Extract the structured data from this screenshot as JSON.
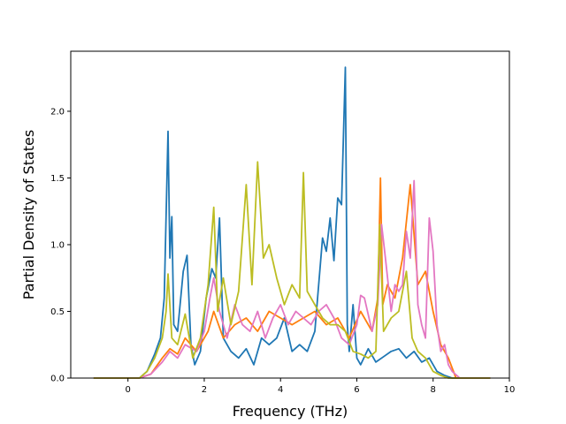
{
  "chart_data": {
    "type": "line",
    "title": "",
    "xlabel": "Frequency (THz)",
    "ylabel": "Partial Density of States",
    "xlim": [
      -1.5,
      10.0
    ],
    "ylim": [
      0.0,
      2.45
    ],
    "xticks": [
      "0",
      "2",
      "4",
      "6",
      "8",
      "10"
    ],
    "yticks": [
      "0.0",
      "0.5",
      "1.0",
      "1.5",
      "2.0"
    ],
    "grid": false,
    "legend": "none",
    "series": [
      {
        "color": "#1f77b4",
        "x": [
          -0.9,
          0.3,
          0.5,
          0.7,
          0.85,
          0.95,
          1.05,
          1.1,
          1.15,
          1.2,
          1.3,
          1.45,
          1.55,
          1.65,
          1.75,
          1.9,
          2.05,
          2.2,
          2.3,
          2.4,
          2.5,
          2.7,
          2.9,
          3.1,
          3.3,
          3.5,
          3.7,
          3.9,
          4.1,
          4.3,
          4.5,
          4.7,
          4.9,
          5.1,
          5.2,
          5.3,
          5.4,
          5.5,
          5.6,
          5.7,
          5.75,
          5.8,
          5.9,
          6.0,
          6.1,
          6.3,
          6.5,
          6.7,
          6.9,
          7.1,
          7.3,
          7.5,
          7.7,
          7.9,
          8.1,
          8.3,
          8.5,
          9.5
        ],
        "y": [
          0.0,
          0.0,
          0.05,
          0.18,
          0.3,
          0.6,
          1.85,
          0.9,
          1.21,
          0.4,
          0.35,
          0.8,
          0.92,
          0.25,
          0.1,
          0.2,
          0.6,
          0.82,
          0.75,
          1.2,
          0.3,
          0.2,
          0.15,
          0.22,
          0.1,
          0.3,
          0.25,
          0.3,
          0.45,
          0.2,
          0.25,
          0.2,
          0.35,
          1.05,
          0.95,
          1.2,
          0.88,
          1.35,
          1.3,
          2.33,
          0.4,
          0.2,
          0.55,
          0.15,
          0.1,
          0.22,
          0.12,
          0.16,
          0.2,
          0.22,
          0.15,
          0.2,
          0.12,
          0.15,
          0.05,
          0.02,
          0.0,
          0.0
        ]
      },
      {
        "color": "#ff7f0e",
        "x": [
          -0.9,
          0.3,
          0.6,
          0.9,
          1.1,
          1.3,
          1.5,
          1.8,
          2.1,
          2.25,
          2.5,
          2.8,
          3.1,
          3.4,
          3.7,
          4.0,
          4.3,
          4.6,
          4.9,
          5.2,
          5.5,
          5.8,
          6.1,
          6.4,
          6.55,
          6.62,
          6.68,
          6.8,
          7.0,
          7.2,
          7.4,
          7.6,
          7.8,
          8.0,
          8.2,
          8.4,
          8.6,
          9.5
        ],
        "y": [
          0.0,
          0.0,
          0.03,
          0.15,
          0.22,
          0.18,
          0.3,
          0.2,
          0.35,
          0.5,
          0.3,
          0.4,
          0.45,
          0.35,
          0.5,
          0.45,
          0.4,
          0.45,
          0.5,
          0.4,
          0.45,
          0.3,
          0.5,
          0.35,
          0.6,
          1.5,
          0.55,
          0.7,
          0.6,
          0.9,
          1.45,
          0.7,
          0.8,
          0.5,
          0.25,
          0.15,
          0.0,
          0.0
        ]
      },
      {
        "color": "#e377c2",
        "x": [
          -0.9,
          0.3,
          0.6,
          0.9,
          1.1,
          1.3,
          1.5,
          1.8,
          2.0,
          2.15,
          2.25,
          2.4,
          2.6,
          2.8,
          3.0,
          3.2,
          3.4,
          3.6,
          3.8,
          4.0,
          4.2,
          4.4,
          4.6,
          4.8,
          5.0,
          5.2,
          5.4,
          5.6,
          5.8,
          6.0,
          6.1,
          6.2,
          6.4,
          6.55,
          6.65,
          6.75,
          6.9,
          7.0,
          7.1,
          7.2,
          7.3,
          7.4,
          7.5,
          7.6,
          7.7,
          7.8,
          7.9,
          8.0,
          8.1,
          8.2,
          8.3,
          8.4,
          8.5,
          8.7,
          9.5
        ],
        "y": [
          0.0,
          0.0,
          0.03,
          0.12,
          0.2,
          0.15,
          0.25,
          0.2,
          0.35,
          0.6,
          0.75,
          0.5,
          0.3,
          0.55,
          0.4,
          0.35,
          0.5,
          0.3,
          0.45,
          0.55,
          0.4,
          0.5,
          0.45,
          0.4,
          0.5,
          0.55,
          0.45,
          0.3,
          0.25,
          0.4,
          0.62,
          0.6,
          0.35,
          0.55,
          1.15,
          0.9,
          0.5,
          0.7,
          0.65,
          0.7,
          1.1,
          0.9,
          1.48,
          0.55,
          0.4,
          0.3,
          1.2,
          0.95,
          0.4,
          0.2,
          0.25,
          0.1,
          0.05,
          0.0,
          0.0
        ]
      },
      {
        "color": "#bcbd22",
        "x": [
          -0.9,
          0.3,
          0.5,
          0.7,
          0.9,
          1.0,
          1.05,
          1.15,
          1.3,
          1.5,
          1.7,
          1.9,
          2.1,
          2.25,
          2.35,
          2.5,
          2.7,
          2.9,
          3.1,
          3.25,
          3.4,
          3.55,
          3.7,
          3.9,
          4.1,
          4.3,
          4.5,
          4.6,
          4.7,
          4.9,
          5.1,
          5.3,
          5.5,
          5.7,
          5.9,
          6.1,
          6.3,
          6.5,
          6.6,
          6.7,
          6.9,
          7.1,
          7.3,
          7.45,
          7.6,
          7.8,
          8.0,
          8.2,
          8.4,
          9.5
        ],
        "y": [
          0.0,
          0.0,
          0.05,
          0.15,
          0.3,
          0.5,
          0.78,
          0.3,
          0.25,
          0.48,
          0.15,
          0.3,
          0.7,
          1.28,
          0.5,
          0.75,
          0.4,
          0.65,
          1.45,
          0.7,
          1.62,
          0.9,
          1.0,
          0.75,
          0.55,
          0.7,
          0.6,
          1.54,
          0.65,
          0.55,
          0.45,
          0.4,
          0.4,
          0.35,
          0.2,
          0.18,
          0.15,
          0.2,
          1.15,
          0.35,
          0.45,
          0.5,
          0.8,
          0.3,
          0.2,
          0.15,
          0.05,
          0.02,
          0.0,
          0.0
        ]
      }
    ]
  }
}
